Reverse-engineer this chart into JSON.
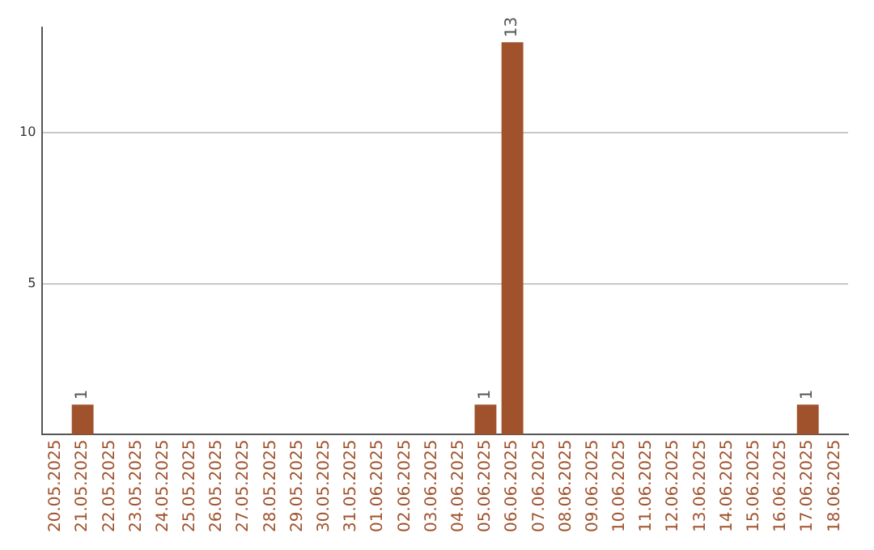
{
  "chart_data": {
    "type": "bar",
    "categories": [
      "20.05.2025",
      "21.05.2025",
      "22.05.2025",
      "23.05.2025",
      "24.05.2025",
      "25.05.2025",
      "26.05.2025",
      "27.05.2025",
      "28.05.2025",
      "29.05.2025",
      "30.05.2025",
      "31.05.2025",
      "01.06.2025",
      "02.06.2025",
      "03.06.2025",
      "04.06.2025",
      "05.06.2025",
      "06.06.2025",
      "07.06.2025",
      "08.06.2025",
      "09.06.2025",
      "10.06.2025",
      "11.06.2025",
      "12.06.2025",
      "13.06.2025",
      "14.06.2025",
      "15.06.2025",
      "16.06.2025",
      "17.06.2025",
      "18.06.2025"
    ],
    "values": [
      0,
      1,
      0,
      0,
      0,
      0,
      0,
      0,
      0,
      0,
      0,
      0,
      0,
      0,
      0,
      0,
      1,
      13,
      0,
      0,
      0,
      0,
      0,
      0,
      0,
      0,
      0,
      0,
      1,
      0
    ],
    "value_labels": [
      null,
      "1",
      null,
      null,
      null,
      null,
      null,
      null,
      null,
      null,
      null,
      null,
      null,
      null,
      null,
      null,
      "1",
      "13",
      null,
      null,
      null,
      null,
      null,
      null,
      null,
      null,
      null,
      null,
      "1",
      null
    ],
    "color": "#a0522d",
    "ylim": [
      0,
      13.5
    ],
    "yticks": [
      5,
      10
    ],
    "grid": "y",
    "legend": false
  }
}
